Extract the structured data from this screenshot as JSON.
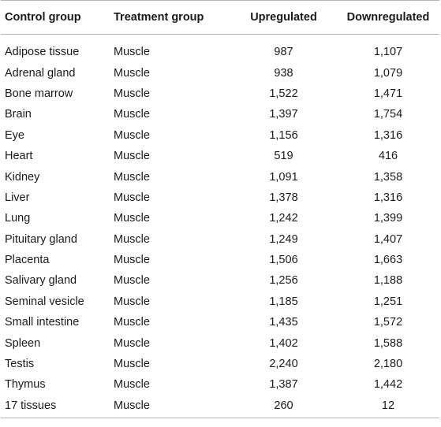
{
  "table": {
    "headers": [
      "Control group",
      "Treatment group",
      "Upregulated",
      "Downregulated"
    ],
    "rows": [
      [
        "Adipose tissue",
        "Muscle",
        "987",
        "1,107"
      ],
      [
        "Adrenal gland",
        "Muscle",
        "938",
        "1,079"
      ],
      [
        "Bone marrow",
        "Muscle",
        "1,522",
        "1,471"
      ],
      [
        "Brain",
        "Muscle",
        "1,397",
        "1,754"
      ],
      [
        "Eye",
        "Muscle",
        "1,156",
        "1,316"
      ],
      [
        "Heart",
        "Muscle",
        "519",
        "416"
      ],
      [
        "Kidney",
        "Muscle",
        "1,091",
        "1,358"
      ],
      [
        "Liver",
        "Muscle",
        "1,378",
        "1,316"
      ],
      [
        "Lung",
        "Muscle",
        "1,242",
        "1,399"
      ],
      [
        "Pituitary gland",
        "Muscle",
        "1,249",
        "1,407"
      ],
      [
        "Placenta",
        "Muscle",
        "1,506",
        "1,663"
      ],
      [
        "Salivary gland",
        "Muscle",
        "1,256",
        "1,188"
      ],
      [
        "Seminal vesicle",
        "Muscle",
        "1,185",
        "1,251"
      ],
      [
        "Small intestine",
        "Muscle",
        "1,435",
        "1,572"
      ],
      [
        "Spleen",
        "Muscle",
        "1,402",
        "1,588"
      ],
      [
        "Testis",
        "Muscle",
        "2,240",
        "2,180"
      ],
      [
        "Thymus",
        "Muscle",
        "1,387",
        "1,442"
      ],
      [
        "17 tissues",
        "Muscle",
        "260",
        "12"
      ]
    ]
  }
}
